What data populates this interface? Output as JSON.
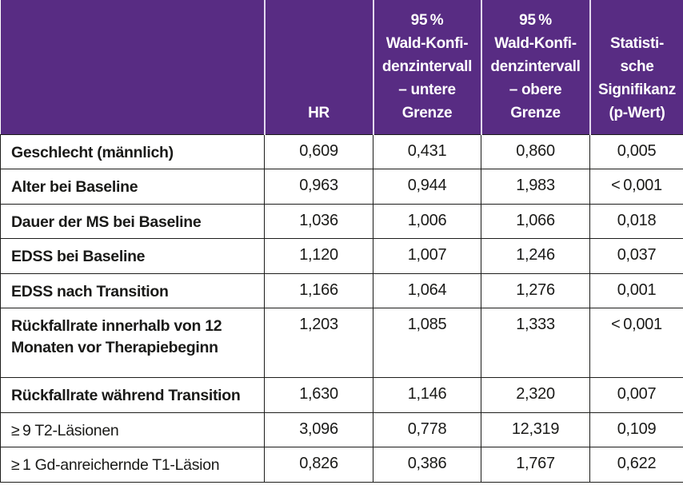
{
  "accent_color": "#582c83",
  "grid_color": "#1d1d1b",
  "header_separator_color": "#e3d9ee",
  "table": {
    "header": {
      "row_label_col": "",
      "hr": "HR",
      "ci_lower": "95 %\nWald-Konfi-\ndenzintervall\n– untere\nGrenze",
      "ci_upper": "95 %\nWald-Konfi-\ndenzintervall\n– obere\nGrenze",
      "significance": "Statisti-\nsche\nSignifikanz\n(p-Wert)"
    },
    "rows": [
      {
        "label": "Geschlecht (männlich)",
        "hr": "0,609",
        "ci_lower": "0,431",
        "ci_upper": "0,860",
        "p": "0,005"
      },
      {
        "label": "Alter bei Baseline",
        "hr": "0,963",
        "ci_lower": "0,944",
        "ci_upper": "1,983",
        "p": "< 0,001"
      },
      {
        "label": "Dauer der MS bei Baseline",
        "hr": "1,036",
        "ci_lower": "1,006",
        "ci_upper": "1,066",
        "p": "0,018"
      },
      {
        "label": "EDSS bei Baseline",
        "hr": "1,120",
        "ci_lower": "1,007",
        "ci_upper": "1,246",
        "p": "0,037"
      },
      {
        "label": "EDSS nach Transition",
        "hr": "1,166",
        "ci_lower": "1,064",
        "ci_upper": "1,276",
        "p": "0,001"
      },
      {
        "label": "Rückfallrate innerhalb von 12 Monaten vor Therapiebeginn",
        "hr": "1,203",
        "ci_lower": "1,085",
        "ci_upper": "1,333",
        "p": "< 0,001"
      },
      {
        "label": "Rückfallrate während Transition",
        "hr": "1,630",
        "ci_lower": "1,146",
        "ci_upper": "2,320",
        "p": "0,007"
      },
      {
        "label": "≥ 9 T2-Läsionen",
        "hr": "3,096",
        "ci_lower": "0,778",
        "ci_upper": "12,319",
        "p": "0,109"
      },
      {
        "label": "≥ 1 Gd-anreichernde T1-Läsion",
        "hr": "0,826",
        "ci_lower": "0,386",
        "ci_upper": "1,767",
        "p": "0,622"
      }
    ]
  },
  "chart_data": {
    "type": "table",
    "title": "",
    "columns": [
      "",
      "HR",
      "95 % Wald-Konfidenzintervall – untere Grenze",
      "95 % Wald-Konfidenzintervall – obere Grenze",
      "Statistische Signifikanz (p-Wert)"
    ],
    "rows": [
      [
        "Geschlecht (männlich)",
        "0,609",
        "0,431",
        "0,860",
        "0,005"
      ],
      [
        "Alter bei Baseline",
        "0,963",
        "0,944",
        "1,983",
        "<0,001"
      ],
      [
        "Dauer der MS bei Baseline",
        "1,036",
        "1,006",
        "1,066",
        "0,018"
      ],
      [
        "EDSS bei Baseline",
        "1,120",
        "1,007",
        "1,246",
        "0,037"
      ],
      [
        "EDSS nach Transition",
        "1,166",
        "1,064",
        "1,276",
        "0,001"
      ],
      [
        "Rückfallrate innerhalb von 12 Monaten vor Therapiebeginn",
        "1,203",
        "1,085",
        "1,333",
        "<0,001"
      ],
      [
        "Rückfallrate während Transition",
        "1,630",
        "1,146",
        "2,320",
        "0,007"
      ],
      [
        "≥9 T2-Läsionen",
        "3,096",
        "0,778",
        "12,319",
        "0,109"
      ],
      [
        "≥1 Gd-anreichernde T1-Läsion",
        "0,826",
        "0,386",
        "1,767",
        "0,622"
      ]
    ]
  }
}
